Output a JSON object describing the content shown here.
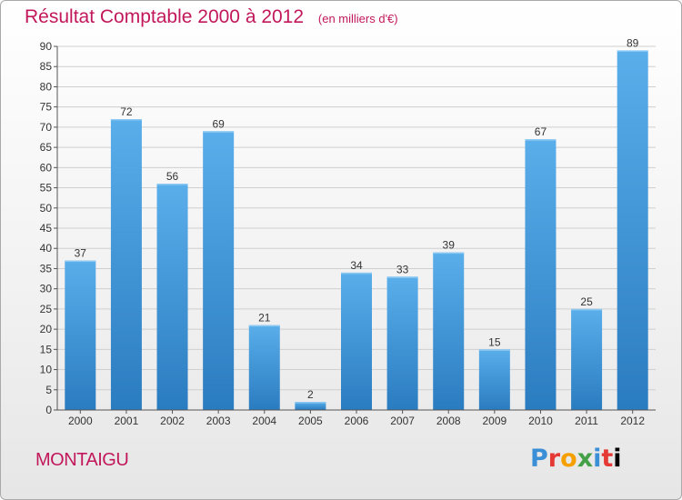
{
  "header": {
    "title": "Résultat Comptable 2000 à 2012",
    "unit": "(en milliers d'€)"
  },
  "footer": {
    "commune": "MONTAIGU",
    "logo_letters": [
      "P",
      "r",
      "o",
      "x",
      "i",
      "t",
      "i"
    ]
  },
  "chart_data": {
    "type": "bar",
    "title": "Résultat Comptable 2000 à 2012",
    "subtitle": "(en milliers d'€)",
    "categories": [
      "2000",
      "2001",
      "2002",
      "2003",
      "2004",
      "2005",
      "2006",
      "2007",
      "2008",
      "2009",
      "2010",
      "2011",
      "2012"
    ],
    "values": [
      37,
      72,
      56,
      69,
      21,
      2,
      34,
      33,
      39,
      15,
      67,
      25,
      89
    ],
    "ylim": [
      0,
      90
    ],
    "yticks": [
      0,
      5,
      10,
      15,
      20,
      25,
      30,
      35,
      40,
      45,
      50,
      55,
      60,
      65,
      70,
      75,
      80,
      85,
      90
    ],
    "grid": true,
    "bar_color": "#4a9fe0",
    "data_labels": true
  }
}
